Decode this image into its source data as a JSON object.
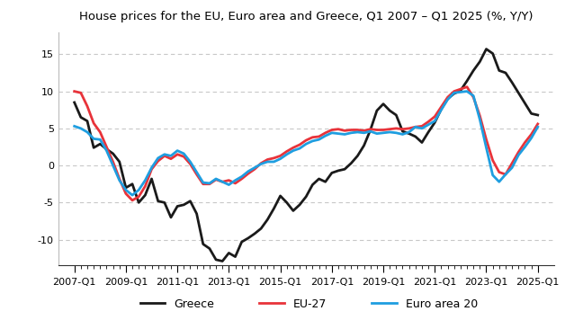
{
  "chart_data": {
    "type": "line",
    "title": "House prices for the EU, Euro area and Greece, Q1 2007 – Q1 2025 (%, Y/Y)",
    "categories": [
      "2007-Q1",
      null,
      null,
      null,
      null,
      null,
      null,
      null,
      "2009-Q1",
      null,
      null,
      null,
      null,
      null,
      null,
      null,
      "2011-Q1",
      null,
      null,
      null,
      null,
      null,
      null,
      null,
      "2013-Q1",
      null,
      null,
      null,
      null,
      null,
      null,
      null,
      "2015-Q1",
      null,
      null,
      null,
      null,
      null,
      null,
      null,
      "2017-Q1",
      null,
      null,
      null,
      null,
      null,
      null,
      null,
      "2019-Q1",
      null,
      null,
      null,
      null,
      null,
      null,
      null,
      "2021-Q1",
      null,
      null,
      null,
      null,
      null,
      null,
      null,
      "2023-Q1",
      null,
      null,
      null,
      null,
      null,
      null,
      null,
      "2025-Q1"
    ],
    "series": [
      {
        "name": "Greece",
        "color": "#1a1a1a",
        "values": [
          8.5,
          6.5,
          6.0,
          2.4,
          2.9,
          2.2,
          1.6,
          0.5,
          -3.0,
          -2.5,
          -5.0,
          -4.0,
          -1.8,
          -4.8,
          -5.0,
          -7.0,
          -5.5,
          -5.3,
          -4.8,
          -6.5,
          -10.6,
          -11.2,
          -12.7,
          -12.9,
          -11.8,
          -12.3,
          -10.3,
          -9.8,
          -9.2,
          -8.5,
          -7.3,
          -5.8,
          -4.1,
          -5.0,
          -6.1,
          -5.3,
          -4.2,
          -2.6,
          -1.8,
          -2.2,
          -1.0,
          -0.7,
          -0.5,
          0.3,
          1.3,
          2.7,
          4.8,
          7.4,
          8.3,
          7.4,
          6.8,
          4.6,
          4.3,
          3.9,
          3.1,
          4.5,
          5.8,
          7.6,
          9.0,
          9.7,
          10.1,
          11.4,
          12.8,
          14.0,
          15.7,
          15.1,
          12.8,
          12.5,
          11.2,
          9.8,
          8.4,
          7.0,
          6.8
        ]
      },
      {
        "name": "EU-27",
        "color": "#e8333a",
        "values": [
          10.0,
          9.8,
          8.0,
          5.7,
          4.5,
          2.5,
          0.5,
          -1.8,
          -3.8,
          -4.7,
          -4.2,
          -2.8,
          -0.5,
          0.6,
          1.3,
          0.9,
          1.5,
          1.2,
          0.2,
          -1.2,
          -2.5,
          -2.5,
          -1.9,
          -2.2,
          -2.0,
          -2.4,
          -1.8,
          -1.1,
          -0.5,
          0.3,
          0.8,
          1.0,
          1.3,
          1.9,
          2.4,
          2.8,
          3.4,
          3.8,
          3.9,
          4.4,
          4.8,
          4.9,
          4.7,
          4.8,
          4.8,
          4.7,
          4.9,
          4.8,
          4.8,
          4.9,
          5.0,
          4.9,
          5.0,
          5.2,
          5.3,
          5.9,
          6.6,
          7.9,
          9.2,
          10.0,
          10.3,
          10.6,
          9.2,
          6.7,
          3.5,
          0.7,
          -0.9,
          -1.2,
          0.3,
          1.8,
          3.1,
          4.2,
          5.6
        ]
      },
      {
        "name": "Euro area 20",
        "color": "#1f9ee0",
        "values": [
          5.3,
          5.0,
          4.5,
          3.6,
          3.5,
          2.0,
          0.0,
          -2.0,
          -3.3,
          -4.0,
          -3.3,
          -2.0,
          -0.3,
          1.0,
          1.5,
          1.3,
          2.0,
          1.6,
          0.5,
          -0.9,
          -2.3,
          -2.4,
          -1.8,
          -2.2,
          -2.6,
          -2.0,
          -1.5,
          -0.8,
          -0.3,
          0.2,
          0.5,
          0.5,
          0.9,
          1.5,
          2.0,
          2.3,
          2.9,
          3.3,
          3.5,
          4.0,
          4.4,
          4.3,
          4.2,
          4.4,
          4.5,
          4.4,
          4.6,
          4.3,
          4.4,
          4.5,
          4.4,
          4.2,
          4.5,
          5.2,
          5.0,
          5.5,
          6.0,
          7.5,
          8.9,
          9.8,
          9.9,
          10.0,
          9.4,
          6.2,
          2.4,
          -1.3,
          -2.2,
          -1.2,
          -0.3,
          1.4,
          2.5,
          3.7,
          5.2
        ]
      }
    ],
    "ylim": [
      -13.5,
      18
    ],
    "yticks": [
      -10,
      -5,
      0,
      5,
      10,
      15
    ],
    "grid": true,
    "legend": "lower center"
  }
}
